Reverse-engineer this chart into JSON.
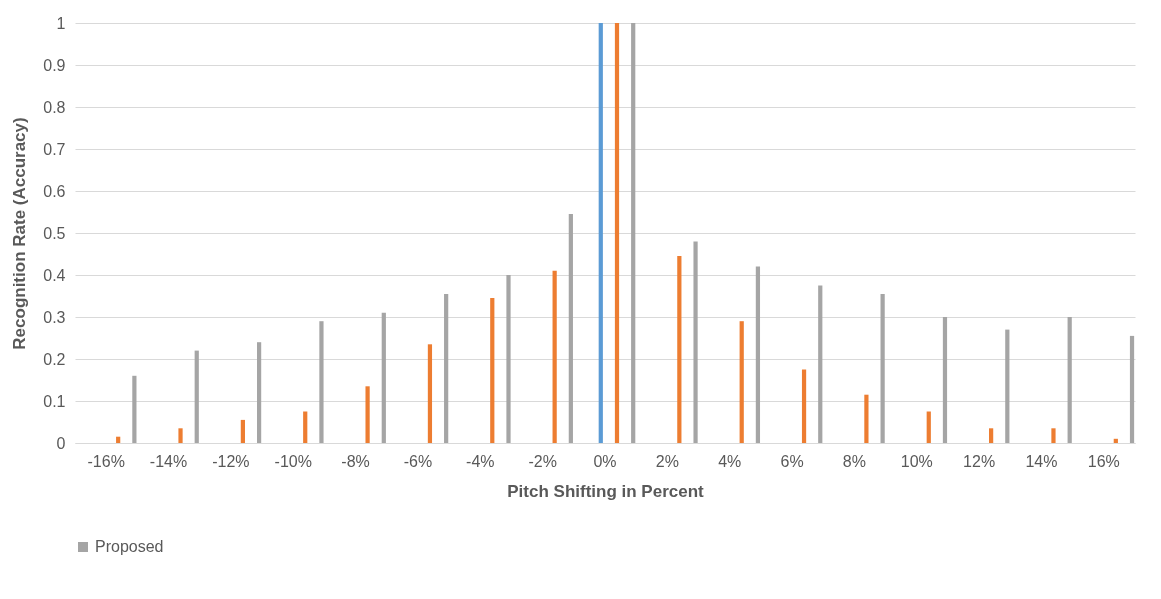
{
  "chart_data": {
    "type": "bar",
    "xlabel": "Pitch Shifting in Percent",
    "ylabel": "Recognition Rate (Accuracy)",
    "categories": [
      "-16%",
      "-14%",
      "-12%",
      "-10%",
      "-8%",
      "-6%",
      "-4%",
      "-2%",
      "0%",
      "2%",
      "4%",
      "6%",
      "8%",
      "10%",
      "12%",
      "14%",
      "16%"
    ],
    "series": [
      {
        "color": "#5b9bd5",
        "values": [
          0,
          0,
          0,
          0,
          0,
          0,
          0,
          0,
          1,
          0,
          0,
          0,
          0,
          0,
          0,
          0,
          0
        ]
      },
      {
        "color": "#ed7d31",
        "values": [
          0.015,
          0.035,
          0.055,
          0.075,
          0.135,
          0.235,
          0.345,
          0.41,
          1,
          0.445,
          0.29,
          0.175,
          0.115,
          0.075,
          0.035,
          0.035,
          0.01
        ]
      },
      {
        "name": "Proposed",
        "color": "#a5a5a5",
        "values": [
          0.16,
          0.22,
          0.24,
          0.29,
          0.31,
          0.355,
          0.4,
          0.545,
          1,
          0.48,
          0.42,
          0.375,
          0.355,
          0.3,
          0.27,
          0.3,
          0.255
        ]
      }
    ],
    "ylim": [
      0,
      1
    ],
    "yticks": [
      0,
      0.1,
      0.2,
      0.3,
      0.4,
      0.5,
      0.6,
      0.7,
      0.8,
      0.9,
      1
    ],
    "grid": "y",
    "legend": "bottom"
  }
}
